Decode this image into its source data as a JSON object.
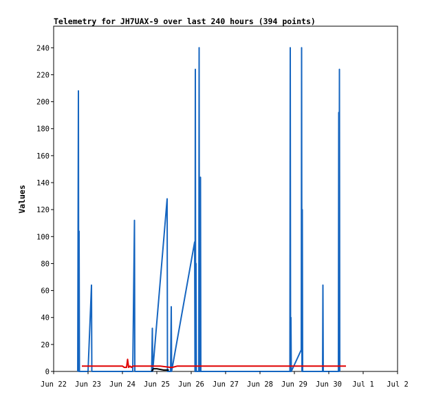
{
  "chart_data": {
    "type": "line",
    "title": "Telemetry for JH7UAX-9 over last 240 hours (394 points)",
    "xlabel": "",
    "ylabel": "Values",
    "x_ticks": [
      "Jun 22",
      "Jun 23",
      "Jun 24",
      "Jun 25",
      "Jun 26",
      "Jun 27",
      "Jun 28",
      "Jun 29",
      "Jun 30",
      "Jul 1",
      "Jul 2"
    ],
    "y_ticks": [
      0,
      20,
      40,
      60,
      80,
      100,
      120,
      140,
      160,
      180,
      200,
      220,
      240
    ],
    "xlim": [
      0,
      10
    ],
    "ylim": [
      0,
      256
    ],
    "grid": false,
    "series": [
      {
        "color": "#1565c0",
        "points": [
          [
            0.7,
            0
          ],
          [
            0.72,
            208
          ],
          [
            0.73,
            0
          ],
          [
            0.74,
            104
          ],
          [
            0.75,
            0
          ],
          [
            1.0,
            0
          ],
          [
            1.1,
            64
          ],
          [
            1.11,
            0
          ],
          [
            2.3,
            0
          ],
          [
            2.35,
            112
          ],
          [
            2.36,
            0
          ],
          [
            2.85,
            0
          ],
          [
            2.87,
            32
          ],
          [
            2.88,
            0
          ],
          [
            3.3,
            128
          ],
          [
            3.31,
            0
          ],
          [
            3.4,
            0
          ],
          [
            3.42,
            48
          ],
          [
            3.43,
            0
          ],
          [
            4.1,
            96
          ],
          [
            4.11,
            0
          ],
          [
            4.12,
            224
          ],
          [
            4.13,
            0
          ],
          [
            4.14,
            80
          ],
          [
            4.15,
            0
          ],
          [
            4.22,
            0
          ],
          [
            4.23,
            240
          ],
          [
            4.24,
            0
          ],
          [
            4.26,
            0
          ],
          [
            4.27,
            144
          ],
          [
            4.28,
            0
          ],
          [
            6.87,
            0
          ],
          [
            6.88,
            240
          ],
          [
            6.89,
            0
          ],
          [
            6.9,
            40
          ],
          [
            6.91,
            0
          ],
          [
            7.2,
            16
          ],
          [
            7.21,
            240
          ],
          [
            7.22,
            0
          ],
          [
            7.23,
            120
          ],
          [
            7.24,
            0
          ],
          [
            7.82,
            0
          ],
          [
            7.83,
            64
          ],
          [
            7.84,
            0
          ],
          [
            8.28,
            0
          ],
          [
            8.29,
            192
          ],
          [
            8.3,
            0
          ],
          [
            8.31,
            224
          ],
          [
            8.32,
            0
          ]
        ]
      },
      {
        "color": "#e00000",
        "points": [
          [
            0.82,
            4
          ],
          [
            1.1,
            4
          ],
          [
            1.5,
            4
          ],
          [
            1.8,
            4
          ],
          [
            2.0,
            4
          ],
          [
            2.05,
            3
          ],
          [
            2.12,
            3
          ],
          [
            2.15,
            9
          ],
          [
            2.18,
            3
          ],
          [
            2.22,
            4
          ],
          [
            2.26,
            3
          ],
          [
            2.3,
            4
          ],
          [
            2.6,
            4
          ],
          [
            2.95,
            4
          ],
          [
            3.1,
            4
          ],
          [
            3.4,
            3
          ],
          [
            3.45,
            3
          ],
          [
            3.6,
            4
          ],
          [
            4.0,
            4
          ],
          [
            5.0,
            4
          ],
          [
            6.0,
            4
          ],
          [
            7.0,
            4
          ],
          [
            8.0,
            4
          ],
          [
            8.5,
            4
          ]
        ]
      },
      {
        "color": "#000000",
        "points": [
          [
            2.85,
            0
          ],
          [
            2.9,
            2
          ],
          [
            2.95,
            2
          ],
          [
            3.0,
            2
          ],
          [
            3.2,
            1
          ],
          [
            3.35,
            1
          ]
        ]
      }
    ]
  }
}
